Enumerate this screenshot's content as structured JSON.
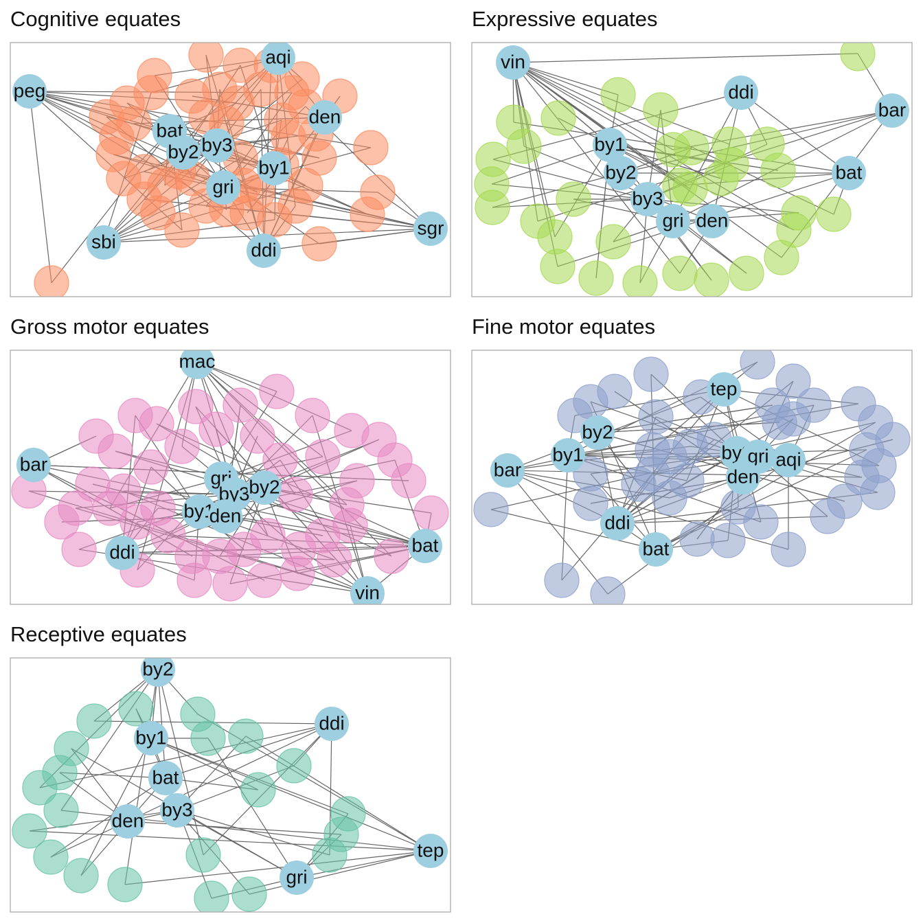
{
  "node_color": "#9ecfe0",
  "panels": [
    {
      "title": "Cognitive equates",
      "color": "#fc8d62",
      "nodes": [
        "peg",
        "aqi",
        "bat",
        "by3",
        "den",
        "by2",
        "by1",
        "gri",
        "sbi",
        "ddi",
        "sgr"
      ]
    },
    {
      "title": "Expressive equates",
      "color": "#a6d854",
      "nodes": [
        "vin",
        "ddi",
        "bar",
        "by1",
        "by2",
        "bat",
        "by3",
        "gri",
        "den"
      ]
    },
    {
      "title": "Gross motor equates",
      "color": "#e78ac3",
      "nodes": [
        "mac",
        "bar",
        "gri",
        "by3",
        "by2",
        "by1",
        "den",
        "ddi",
        "bat",
        "vin"
      ]
    },
    {
      "title": "Fine motor equates",
      "color": "#8da0cb",
      "nodes": [
        "tep",
        "by2",
        "by1",
        "by3",
        "gri",
        "aqi",
        "den",
        "bar",
        "ddi",
        "bat"
      ]
    },
    {
      "title": "Receptive equates",
      "color": "#66c2a5",
      "nodes": [
        "by2",
        "by1",
        "ddi",
        "bat",
        "by3",
        "den",
        "tep",
        "gri"
      ]
    }
  ]
}
